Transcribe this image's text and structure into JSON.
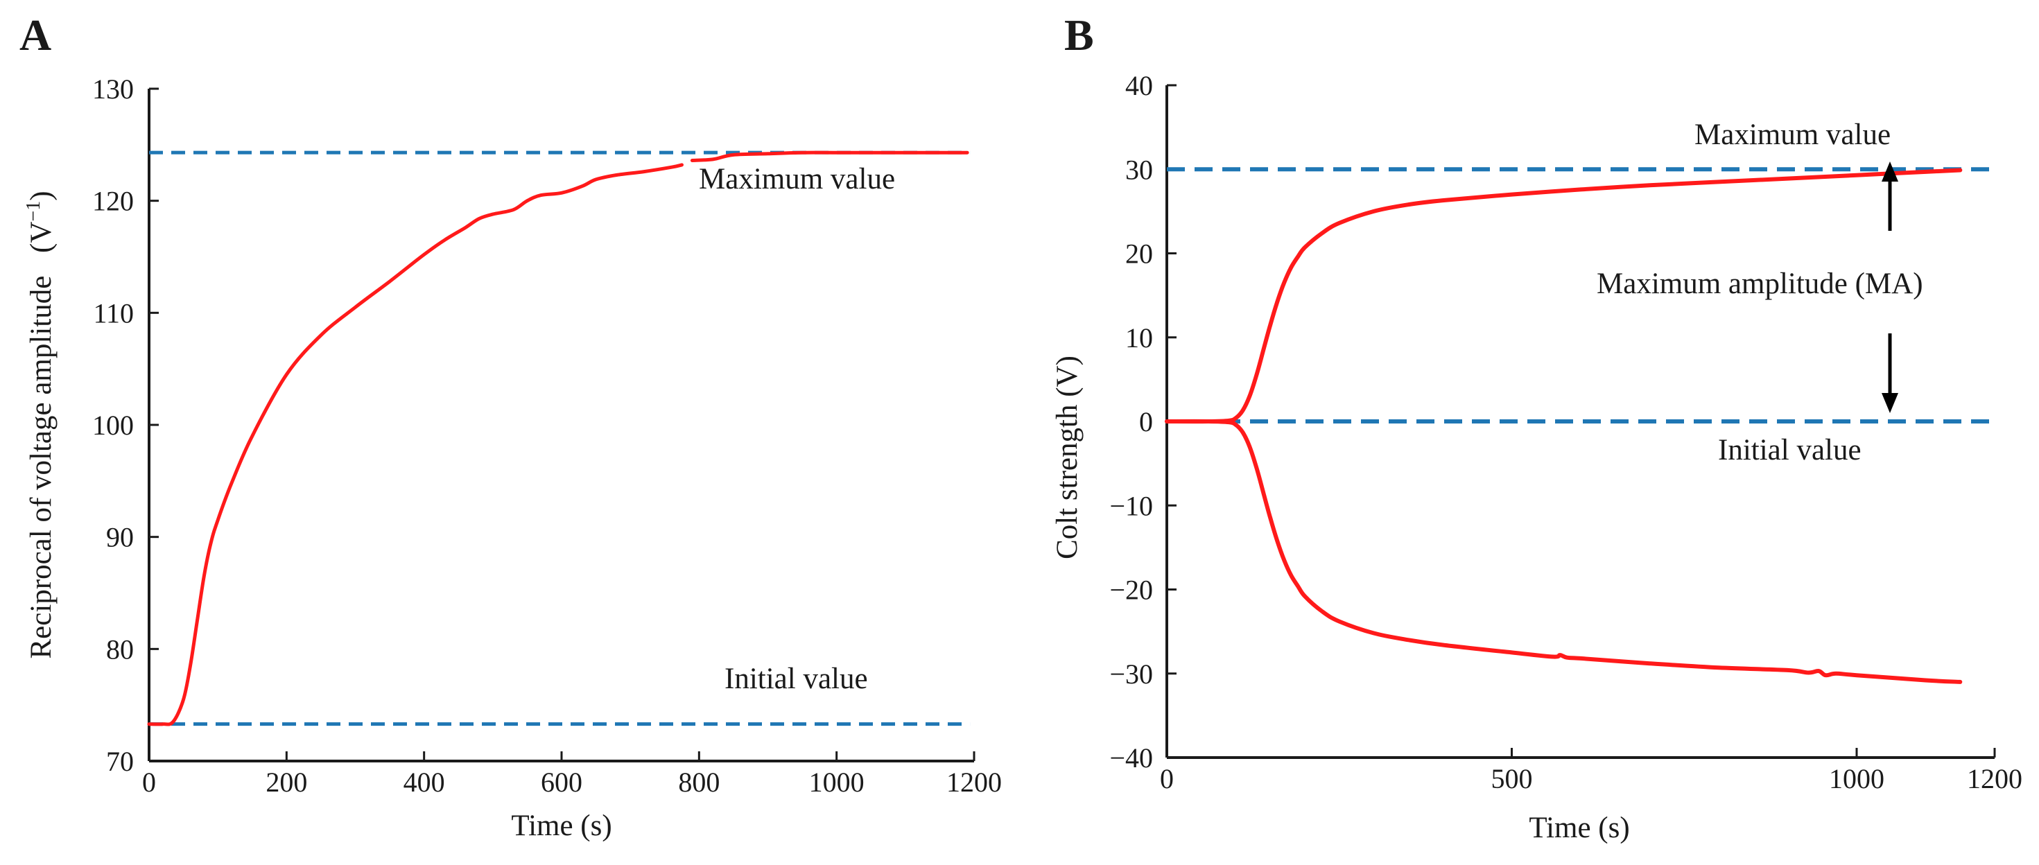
{
  "colors": {
    "curve": "#ff1a1a",
    "reference": "#1f77b4",
    "axis": "#1a1a1a",
    "arrow": "#000000"
  },
  "chart_data": [
    {
      "panel": "A",
      "type": "line",
      "xlabel": "Time (s)",
      "ylabel": "Reciprocal of voltage amplitude",
      "ylabel_unit_base": "(V",
      "ylabel_unit_sup": "−1",
      "ylabel_unit_end": ")",
      "xlim": [
        0,
        1200
      ],
      "ylim": [
        70,
        130
      ],
      "xticks": [
        0,
        200,
        400,
        600,
        800,
        1000,
        1200
      ],
      "yticks": [
        70,
        80,
        90,
        100,
        110,
        120,
        130
      ],
      "reference_lines": [
        {
          "label": "Maximum value",
          "y": 124.3
        },
        {
          "label": "Initial value",
          "y": 73.3
        }
      ],
      "series": [
        {
          "name": "curve-a",
          "x": [
            0,
            20,
            35,
            50,
            60,
            70,
            80,
            90,
            100,
            120,
            150,
            200,
            250,
            300,
            350,
            400,
            430,
            460,
            480,
            500,
            530,
            550,
            570,
            600,
            630,
            650,
            680,
            720,
            760,
            775
          ],
          "y": [
            73.3,
            73.3,
            73.5,
            75.5,
            78.5,
            82.5,
            86.5,
            89.5,
            91.5,
            94.8,
            99.0,
            104.5,
            108.0,
            110.5,
            112.8,
            115.2,
            116.5,
            117.6,
            118.4,
            118.8,
            119.2,
            120.0,
            120.5,
            120.7,
            121.3,
            121.9,
            122.3,
            122.6,
            123.0,
            123.2
          ]
        },
        {
          "name": "curve-a-tail",
          "x": [
            790,
            820,
            850,
            900,
            950,
            1000,
            1100,
            1190
          ],
          "y": [
            123.6,
            123.7,
            124.1,
            124.2,
            124.3,
            124.3,
            124.3,
            124.3
          ]
        }
      ]
    },
    {
      "panel": "B",
      "type": "line",
      "xlabel": "Time (s)",
      "ylabel": "Colt strength (V)",
      "xlim": [
        0,
        1200
      ],
      "ylim": [
        -40,
        40
      ],
      "xticks": [
        0,
        500,
        1000,
        1200
      ],
      "yticks": [
        -40,
        -30,
        -20,
        -10,
        0,
        10,
        20,
        30,
        40
      ],
      "ytick_labels": [
        "−40",
        "−30",
        "−20",
        "−10",
        "0",
        "10",
        "20",
        "30",
        "40"
      ],
      "reference_lines": [
        {
          "label": "Maximum value",
          "y": 30
        },
        {
          "label": "Initial value",
          "y": 0
        }
      ],
      "annotation": "Maximum amplitude (MA)",
      "series": [
        {
          "name": "upper",
          "x": [
            0,
            60,
            90,
            100,
            110,
            120,
            130,
            140,
            150,
            160,
            170,
            180,
            190,
            200,
            225,
            250,
            300,
            350,
            400,
            500,
            600,
            700,
            800,
            900,
            1000,
            1100,
            1150
          ],
          "y": [
            0,
            0,
            0.1,
            0.4,
            1.3,
            3,
            5.5,
            8.5,
            11.5,
            14.2,
            16.5,
            18.3,
            19.6,
            20.7,
            22.4,
            23.6,
            25.0,
            25.8,
            26.3,
            27.0,
            27.6,
            28.1,
            28.5,
            28.9,
            29.3,
            29.7,
            29.9
          ]
        },
        {
          "name": "lower",
          "x": [
            0,
            60,
            90,
            100,
            110,
            120,
            130,
            140,
            150,
            160,
            170,
            180,
            190,
            200,
            225,
            250,
            300,
            350,
            400,
            500,
            560,
            570,
            580,
            600,
            700,
            800,
            900,
            930,
            945,
            955,
            970,
            1000,
            1100,
            1150
          ],
          "y": [
            0,
            0,
            -0.1,
            -0.4,
            -1.3,
            -3,
            -5.5,
            -8.5,
            -11.5,
            -14.2,
            -16.5,
            -18.3,
            -19.6,
            -20.8,
            -22.6,
            -23.8,
            -25.2,
            -26.0,
            -26.6,
            -27.5,
            -28.0,
            -27.8,
            -28.1,
            -28.2,
            -28.8,
            -29.3,
            -29.6,
            -29.9,
            -29.7,
            -30.2,
            -30.0,
            -30.2,
            -30.8,
            -31.0
          ]
        }
      ]
    }
  ]
}
